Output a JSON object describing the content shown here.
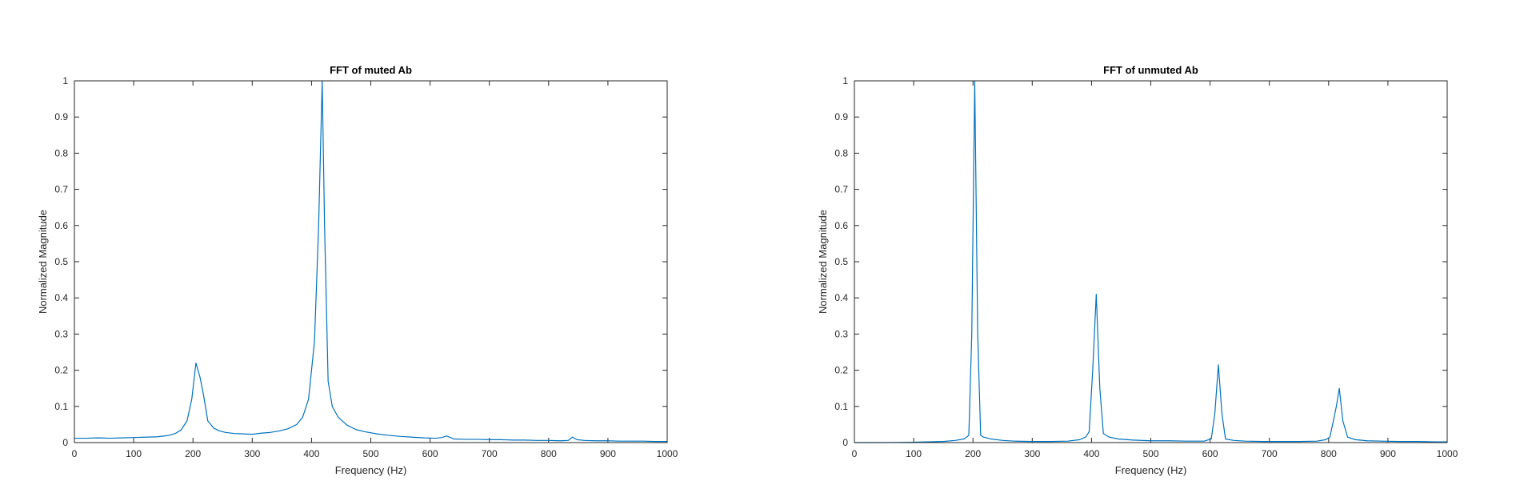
{
  "chart_data": [
    {
      "type": "line",
      "title": "FFT of muted Ab",
      "xlabel": "Frequency (Hz)",
      "ylabel": "Normalized Magnitude",
      "xlim": [
        0,
        1000
      ],
      "ylim": [
        0,
        1
      ],
      "xticks": [
        0,
        100,
        200,
        300,
        400,
        500,
        600,
        700,
        800,
        900,
        1000
      ],
      "yticks": [
        0,
        0.1,
        0.2,
        0.3,
        0.4,
        0.5,
        0.6,
        0.7,
        0.8,
        0.9,
        1
      ],
      "grid": false,
      "color": "#0072BD",
      "series": [
        {
          "x": [
            0,
            20,
            40,
            60,
            80,
            100,
            120,
            140,
            150,
            160,
            170,
            180,
            190,
            198,
            205,
            212,
            218,
            225,
            235,
            245,
            255,
            270,
            285,
            300,
            315,
            330,
            345,
            360,
            375,
            385,
            395,
            405,
            412,
            418,
            422,
            428,
            435,
            445,
            460,
            475,
            490,
            510,
            530,
            550,
            570,
            590,
            610,
            620,
            628,
            640,
            660,
            680,
            700,
            720,
            740,
            760,
            780,
            800,
            820,
            833,
            840,
            848,
            860,
            880,
            900,
            920,
            940,
            960,
            980,
            1000
          ],
          "y": [
            0.012,
            0.012,
            0.013,
            0.012,
            0.013,
            0.014,
            0.015,
            0.016,
            0.018,
            0.02,
            0.025,
            0.035,
            0.06,
            0.12,
            0.22,
            0.18,
            0.13,
            0.06,
            0.04,
            0.032,
            0.028,
            0.025,
            0.024,
            0.023,
            0.026,
            0.028,
            0.032,
            0.038,
            0.05,
            0.07,
            0.12,
            0.28,
            0.6,
            1.0,
            0.6,
            0.17,
            0.1,
            0.07,
            0.048,
            0.036,
            0.03,
            0.024,
            0.02,
            0.017,
            0.015,
            0.013,
            0.012,
            0.014,
            0.018,
            0.01,
            0.009,
            0.009,
            0.008,
            0.008,
            0.007,
            0.007,
            0.006,
            0.006,
            0.005,
            0.006,
            0.015,
            0.008,
            0.006,
            0.005,
            0.005,
            0.004,
            0.004,
            0.004,
            0.003,
            0.003
          ]
        }
      ]
    },
    {
      "type": "line",
      "title": "FFT of unmuted Ab",
      "xlabel": "Frequency (Hz)",
      "ylabel": "Normalized Magnitude",
      "xlim": [
        0,
        1000
      ],
      "ylim": [
        0,
        1
      ],
      "xticks": [
        0,
        100,
        200,
        300,
        400,
        500,
        600,
        700,
        800,
        900,
        1000
      ],
      "yticks": [
        0,
        0.1,
        0.2,
        0.3,
        0.4,
        0.5,
        0.6,
        0.7,
        0.8,
        0.9,
        1
      ],
      "grid": false,
      "color": "#0072BD",
      "series": [
        {
          "x": [
            0,
            50,
            100,
            150,
            170,
            185,
            193,
            198,
            203,
            208,
            213,
            218,
            230,
            250,
            270,
            300,
            330,
            360,
            380,
            390,
            396,
            402,
            408,
            414,
            420,
            430,
            445,
            470,
            500,
            530,
            560,
            590,
            602,
            608,
            614,
            620,
            626,
            640,
            660,
            690,
            720,
            750,
            780,
            795,
            802,
            808,
            813,
            818,
            824,
            832,
            845,
            865,
            890,
            920,
            950,
            980,
            1000
          ],
          "y": [
            0.0,
            0.0,
            0.001,
            0.003,
            0.006,
            0.01,
            0.02,
            0.3,
            1.0,
            0.3,
            0.02,
            0.015,
            0.01,
            0.006,
            0.004,
            0.003,
            0.003,
            0.004,
            0.008,
            0.015,
            0.03,
            0.2,
            0.41,
            0.15,
            0.025,
            0.015,
            0.01,
            0.007,
            0.005,
            0.005,
            0.004,
            0.004,
            0.01,
            0.08,
            0.215,
            0.08,
            0.01,
            0.006,
            0.004,
            0.003,
            0.003,
            0.003,
            0.004,
            0.008,
            0.015,
            0.06,
            0.1,
            0.15,
            0.06,
            0.015,
            0.008,
            0.005,
            0.004,
            0.003,
            0.003,
            0.002,
            0.002
          ]
        }
      ]
    }
  ]
}
